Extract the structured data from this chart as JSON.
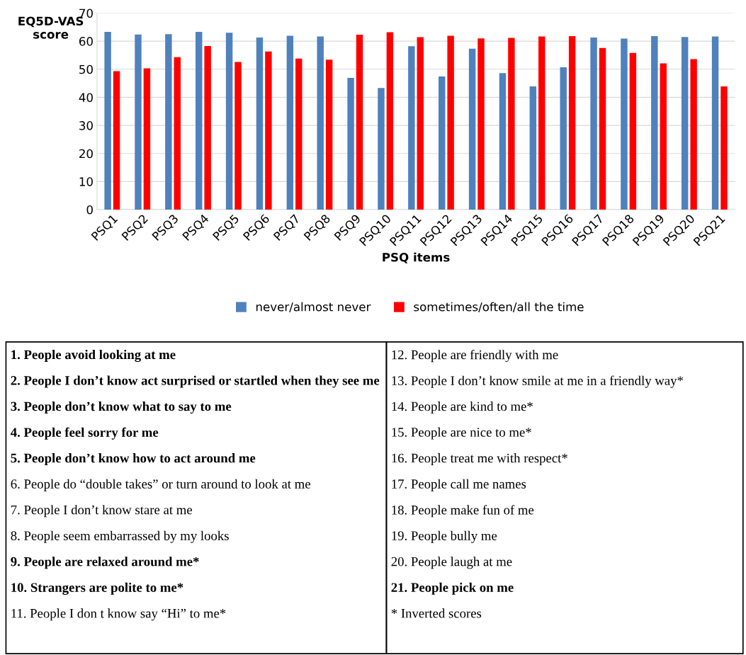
{
  "chart_data": {
    "type": "bar",
    "xlabel": "PSQ items",
    "ylabel": "EQ5D-VAS score",
    "categories": [
      "PSQ1",
      "PSQ2",
      "PSQ3",
      "PSQ4",
      "PSQ5",
      "PSQ6",
      "PSQ7",
      "PSQ8",
      "PSQ9",
      "PSQ10",
      "PSQ11",
      "PSQ12",
      "PSQ13",
      "PSQ14",
      "PSQ15",
      "PSQ16",
      "PSQ17",
      "PSQ18",
      "PSQ19",
      "PSQ20",
      "PSQ21"
    ],
    "series": [
      {
        "name": "never/almost never",
        "color": "#4f81bd",
        "values": [
          63.3,
          62.4,
          62.5,
          63.3,
          63.0,
          61.3,
          61.9,
          61.7,
          46.9,
          43.3,
          58.2,
          47.4,
          57.3,
          48.6,
          43.9,
          50.7,
          61.3,
          60.9,
          61.8,
          61.5,
          61.7
        ]
      },
      {
        "name": "sometimes/often/all the time",
        "color": "#ff0000",
        "values": [
          49.3,
          50.3,
          54.3,
          58.3,
          52.6,
          56.3,
          53.8,
          53.4,
          62.3,
          63.2,
          61.4,
          61.9,
          61.0,
          61.2,
          61.7,
          61.8,
          57.6,
          55.8,
          52.1,
          53.6,
          43.9
        ]
      }
    ],
    "ylim": [
      0,
      70
    ],
    "yticks": [
      0,
      10,
      20,
      30,
      40,
      50,
      60,
      70
    ],
    "grid": "y",
    "legend": "bottom",
    "annotations": [
      "1. People avoid looking at me",
      "2. People I don’t know act surprised or startled when they see me",
      "3. People don’t know what to say to me",
      "4. People feel sorry for me",
      "5. People don’t know how to act around me",
      "6. People do “double takes” or turn around to look at me",
      "7. People I don’t know stare at me",
      "8. People seem embarrassed by my looks",
      "9. People are relaxed around me*",
      "10. Strangers are polite to me*",
      "11. People I don t know say “Hi” to me*",
      "12. People are friendly with me",
      "13. People I don’t know smile at me in a friendly way*",
      "14. People are kind to me*",
      "15. People are nice to me*",
      "16. People treat me with respect*",
      "17. People call me names",
      "18. People make fun of me",
      "19. People bully me",
      "20. People laugh at me",
      "21. People pick on me",
      "* Inverted scores"
    ]
  }
}
